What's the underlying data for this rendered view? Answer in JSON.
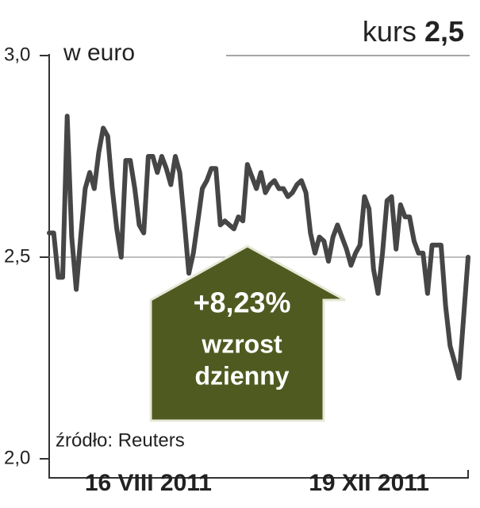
{
  "chart_data": {
    "type": "line",
    "title_prefix": "kurs",
    "title_value": "2,5",
    "unit_label": "w euro",
    "annotation": {
      "value_text": "+8,23%",
      "line1": "wzrost",
      "line2": "dzienny"
    },
    "source": "źródło: Reuters",
    "categories": [
      null,
      null,
      null,
      null,
      null,
      null,
      null,
      null,
      null,
      null,
      null,
      null,
      null,
      null,
      null,
      null,
      null,
      null,
      null,
      null,
      null,
      null,
      "16 VIII 2011",
      null,
      null,
      null,
      null,
      null,
      null,
      null,
      null,
      null,
      null,
      null,
      null,
      null,
      null,
      null,
      null,
      null,
      null,
      null,
      null,
      null,
      null,
      null,
      null,
      null,
      null,
      null,
      null,
      null,
      null,
      null,
      null,
      null,
      null,
      null,
      null,
      null,
      null,
      null,
      null,
      null,
      null,
      null,
      null,
      null,
      null,
      null,
      null,
      "19 XII 2011",
      null,
      null,
      null,
      null,
      null,
      null,
      null,
      null,
      null,
      null,
      null,
      null,
      null,
      null,
      null,
      null,
      null,
      null,
      null,
      null,
      null,
      null
    ],
    "series": [
      {
        "name": "kurs",
        "color": "#464646",
        "values": [
          2.56,
          2.56,
          2.45,
          2.45,
          2.85,
          2.55,
          2.42,
          2.55,
          2.67,
          2.71,
          2.67,
          2.76,
          2.82,
          2.8,
          2.67,
          2.57,
          2.5,
          2.74,
          2.74,
          2.67,
          2.58,
          2.56,
          2.75,
          2.75,
          2.71,
          2.75,
          2.72,
          2.68,
          2.75,
          2.71,
          2.59,
          2.46,
          2.51,
          2.59,
          2.67,
          2.69,
          2.72,
          2.72,
          2.58,
          2.59,
          2.58,
          2.57,
          2.6,
          2.59,
          2.73,
          2.7,
          2.67,
          2.71,
          2.66,
          2.68,
          2.69,
          2.67,
          2.67,
          2.65,
          2.66,
          2.68,
          2.69,
          2.66,
          2.56,
          2.51,
          2.55,
          2.54,
          2.49,
          2.55,
          2.58,
          2.55,
          2.52,
          2.48,
          2.51,
          2.53,
          2.65,
          2.62,
          2.47,
          2.41,
          2.51,
          2.64,
          2.65,
          2.52,
          2.63,
          2.6,
          2.6,
          2.54,
          2.51,
          2.51,
          2.41,
          2.53,
          2.53,
          2.53,
          2.38,
          2.28,
          2.24,
          2.2,
          2.35,
          2.5
        ]
      }
    ],
    "ylim": [
      2.0,
      3.0
    ],
    "yticks": [
      {
        "value": 2.0,
        "label": "2,0"
      },
      {
        "value": 2.5,
        "label": "2,5"
      },
      {
        "value": 3.0,
        "label": "3,0"
      }
    ],
    "grid": true
  }
}
